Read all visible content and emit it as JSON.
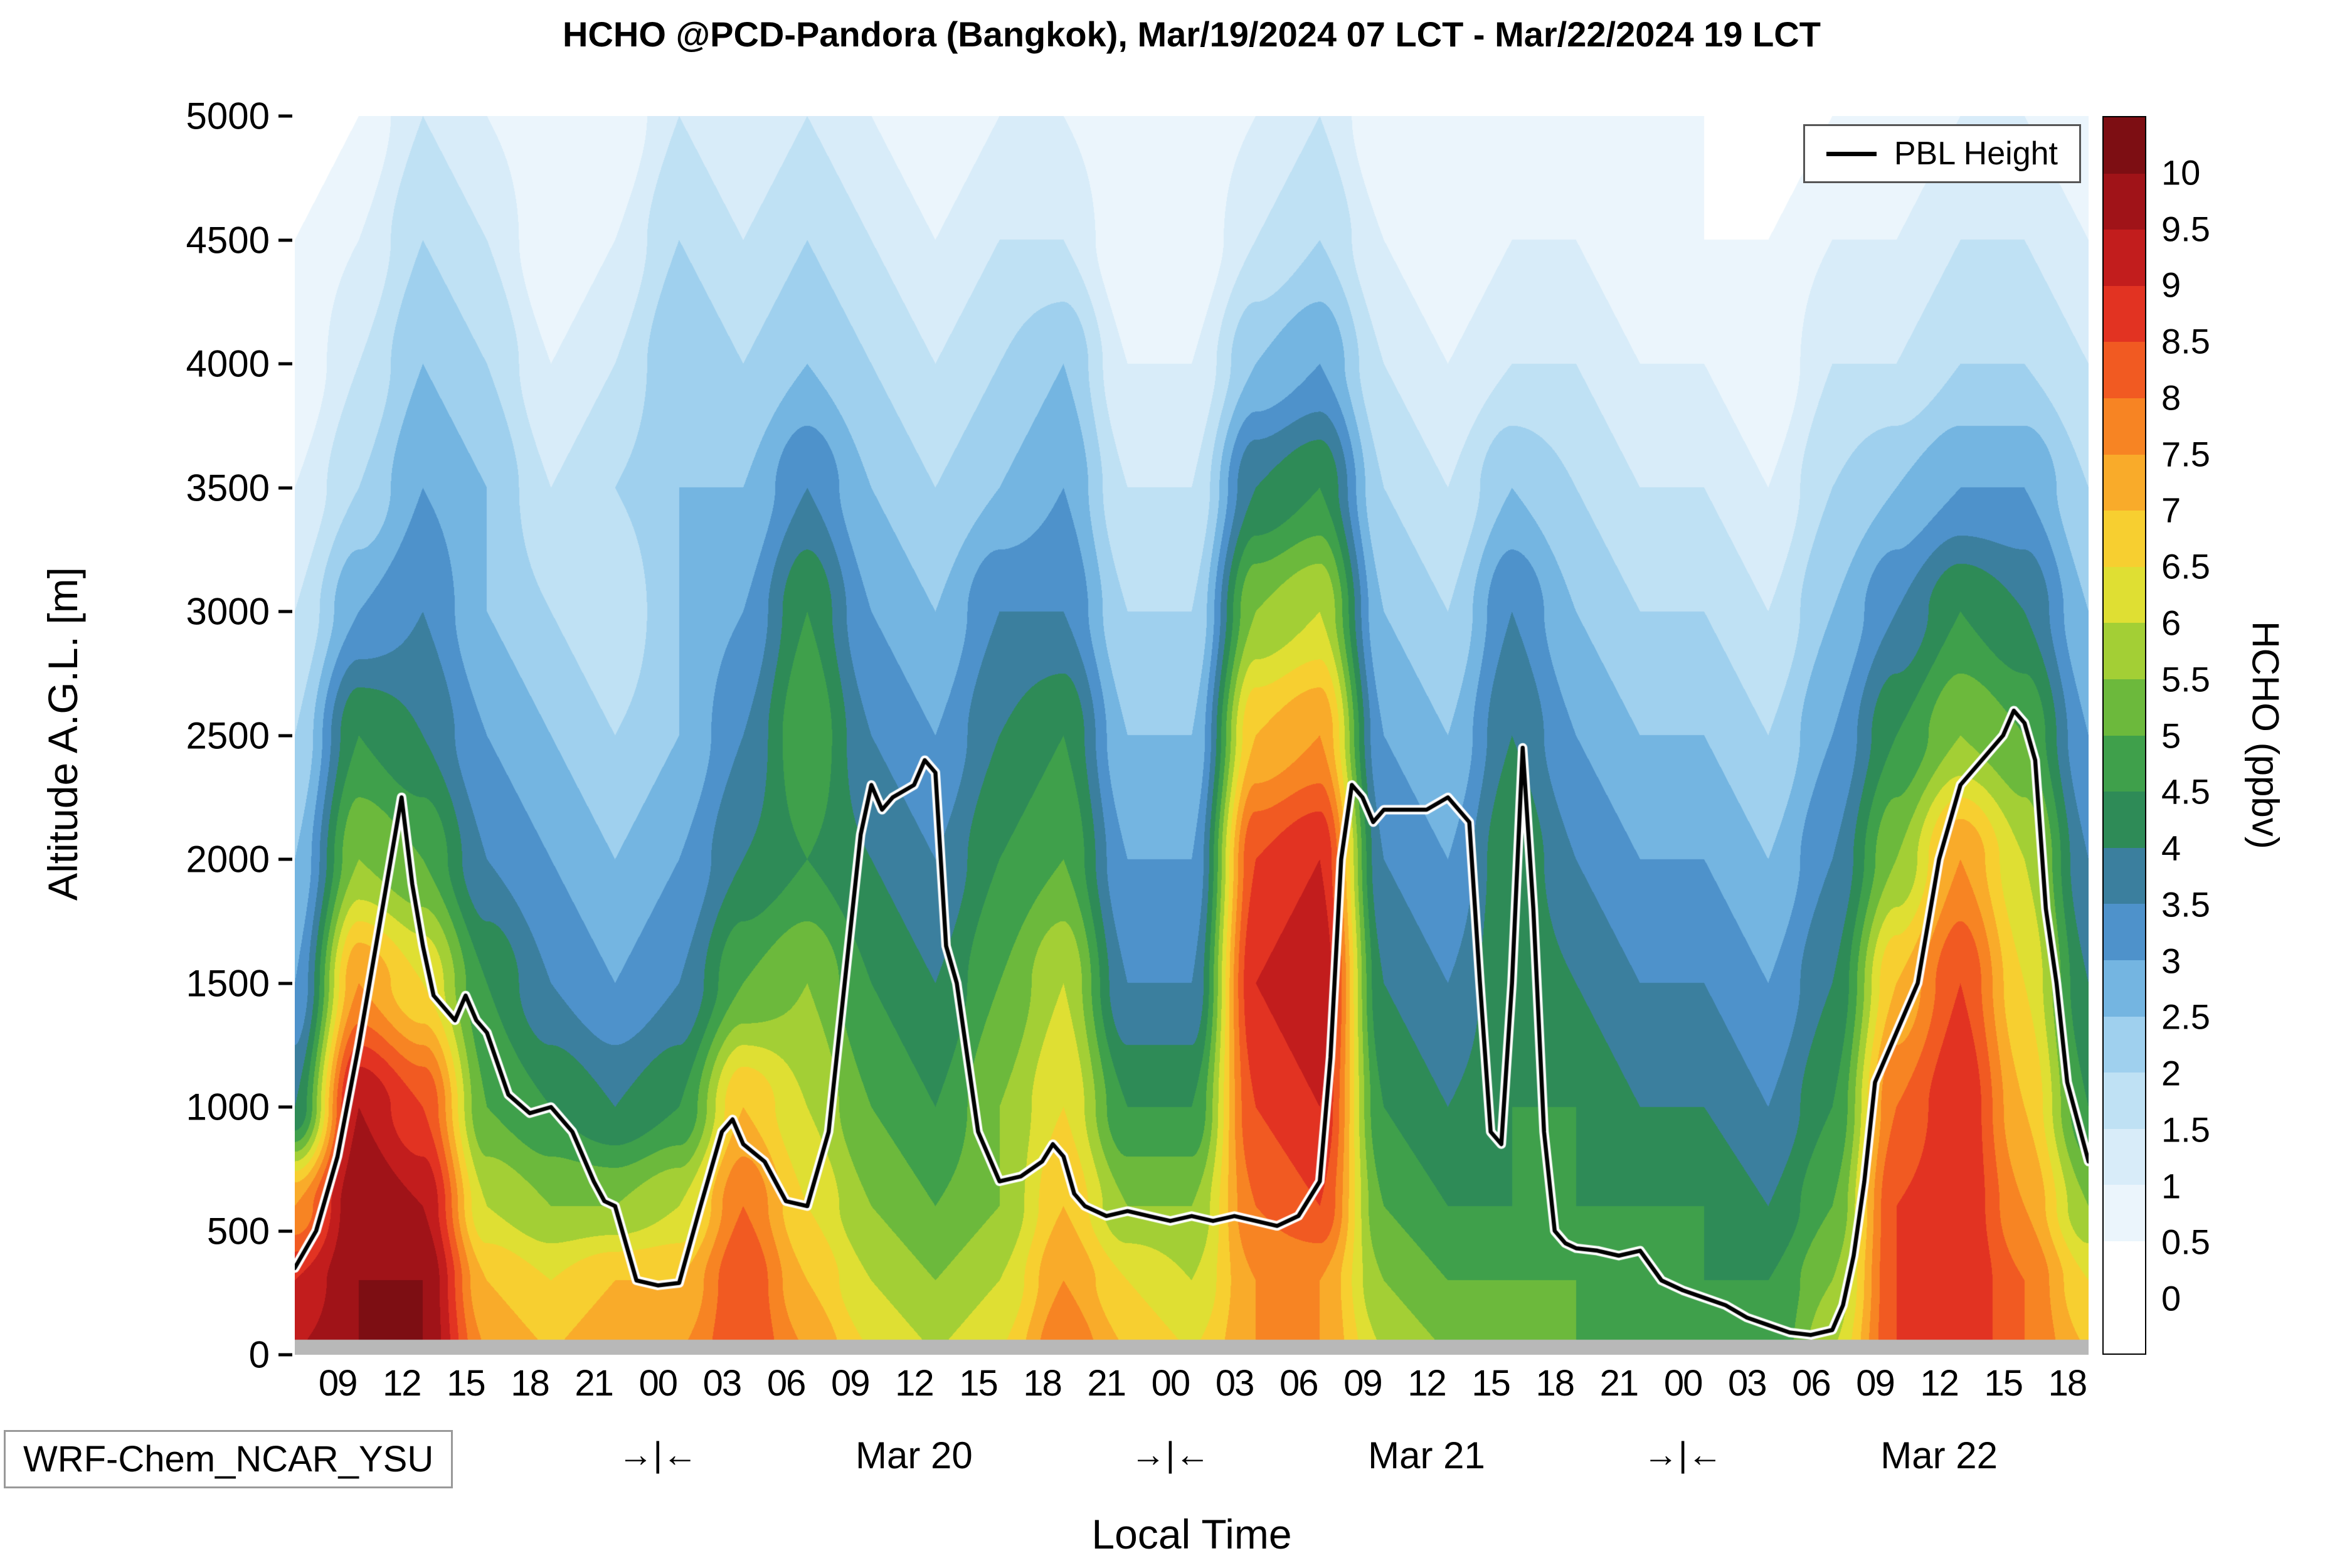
{
  "chart_data": {
    "type": "heatmap",
    "title": "HCHO @PCD-Pandora (Bangkok), Mar/19/2024 07 LCT - Mar/22/2024 19 LCT",
    "xlabel": "Local Time",
    "ylabel": "Altitude A.G.L. [m]",
    "model_label": "WRF-Chem_NCAR_YSU",
    "surface_color": "#b8b8b8",
    "x_range_hours": [
      7,
      91
    ],
    "y_range_m": [
      0,
      5000
    ],
    "y_ticks": [
      {
        "value": 0,
        "label": "0"
      },
      {
        "value": 500,
        "label": "500"
      },
      {
        "value": 1000,
        "label": "1000"
      },
      {
        "value": 1500,
        "label": "1500"
      },
      {
        "value": 2000,
        "label": "2000"
      },
      {
        "value": 2500,
        "label": "2500"
      },
      {
        "value": 3000,
        "label": "3000"
      },
      {
        "value": 3500,
        "label": "3500"
      },
      {
        "value": 4000,
        "label": "4000"
      },
      {
        "value": 4500,
        "label": "4500"
      },
      {
        "value": 5000,
        "label": "5000"
      }
    ],
    "x_ticks": [
      {
        "t": 9,
        "label": "09"
      },
      {
        "t": 12,
        "label": "12"
      },
      {
        "t": 15,
        "label": "15"
      },
      {
        "t": 18,
        "label": "18"
      },
      {
        "t": 21,
        "label": "21"
      },
      {
        "t": 24,
        "label": "00"
      },
      {
        "t": 27,
        "label": "03"
      },
      {
        "t": 30,
        "label": "06"
      },
      {
        "t": 33,
        "label": "09"
      },
      {
        "t": 36,
        "label": "12"
      },
      {
        "t": 39,
        "label": "15"
      },
      {
        "t": 42,
        "label": "18"
      },
      {
        "t": 45,
        "label": "21"
      },
      {
        "t": 48,
        "label": "00"
      },
      {
        "t": 51,
        "label": "03"
      },
      {
        "t": 54,
        "label": "06"
      },
      {
        "t": 57,
        "label": "09"
      },
      {
        "t": 60,
        "label": "12"
      },
      {
        "t": 63,
        "label": "15"
      },
      {
        "t": 66,
        "label": "18"
      },
      {
        "t": 69,
        "label": "21"
      },
      {
        "t": 72,
        "label": "00"
      },
      {
        "t": 75,
        "label": "03"
      },
      {
        "t": 78,
        "label": "06"
      },
      {
        "t": 81,
        "label": "09"
      },
      {
        "t": 84,
        "label": "12"
      },
      {
        "t": 87,
        "label": "15"
      },
      {
        "t": 90,
        "label": "18"
      }
    ],
    "day_labels": [
      {
        "t": 36,
        "label": "Mar 20"
      },
      {
        "t": 60,
        "label": "Mar 21"
      },
      {
        "t": 84,
        "label": "Mar 22"
      }
    ],
    "day_boundaries": [
      {
        "t": 24,
        "label": "→|←"
      },
      {
        "t": 48,
        "label": "→|←"
      },
      {
        "t": 72,
        "label": "→|←"
      }
    ],
    "legend": {
      "pbl_label": "PBL Height",
      "pbl_line_color": "#000000",
      "pbl_halo_color": "#ffffff"
    },
    "colorbar": {
      "label": "HCHO (ppbv)",
      "tick_labels": [
        "10",
        "9.5",
        "9",
        "8.5",
        "8",
        "7.5",
        "7",
        "6.5",
        "6",
        "5.5",
        "5",
        "4.5",
        "4",
        "3.5",
        "3",
        "2.5",
        "2",
        "1.5",
        "1",
        "0.5",
        "0"
      ],
      "levels": [
        0,
        0.5,
        1,
        1.5,
        2,
        2.5,
        3,
        3.5,
        4,
        4.5,
        5,
        5.5,
        6,
        6.5,
        7,
        7.5,
        8,
        8.5,
        9,
        9.5,
        10
      ],
      "colors": [
        "#ffffff",
        "#ebf5fc",
        "#d8ecf9",
        "#bfe1f4",
        "#9fd0ee",
        "#74b5e1",
        "#4e92cb",
        "#3b7f9e",
        "#2e8b57",
        "#3fa04b",
        "#6cb93c",
        "#a3cf35",
        "#dfdf33",
        "#f7cf30",
        "#f9ab2a",
        "#f78423",
        "#f15a22",
        "#e23322",
        "#c21d1d",
        "#a01318"
      ],
      "over_color": "#7d0e13",
      "under_color": "#ffffff"
    },
    "grid": {
      "times": [
        7,
        10,
        13,
        16,
        19,
        22,
        25,
        28,
        31,
        34,
        37,
        40,
        43,
        46,
        49,
        52,
        55,
        58,
        61,
        64,
        67,
        70,
        73,
        76,
        79,
        82,
        85,
        88,
        91
      ],
      "altitudes": [
        0,
        300,
        600,
        1000,
        1500,
        2000,
        2500,
        3000,
        3500,
        4000,
        4500,
        5000
      ],
      "values": [
        [
          9.5,
          10,
          10,
          7.5,
          7,
          7.5,
          7.5,
          8.5,
          7.5,
          6.5,
          6,
          6.5,
          8,
          7,
          6.5,
          7.5,
          7.5,
          6,
          5.5,
          5.5,
          5,
          5,
          5,
          4.5,
          6,
          8.5,
          9,
          8,
          7
        ],
        [
          9,
          10,
          10,
          7,
          6.5,
          7,
          7,
          8.5,
          7,
          6,
          5.5,
          6,
          7.5,
          6.5,
          6,
          7.5,
          7.5,
          5.5,
          5,
          5,
          5,
          4.5,
          4.5,
          4.5,
          5.5,
          8.5,
          9,
          8,
          6.5
        ],
        [
          7.5,
          10,
          9.5,
          6,
          5.5,
          5.5,
          6,
          8,
          6.5,
          5.5,
          5,
          5.5,
          7,
          5.5,
          5.5,
          8,
          8.5,
          5,
          4.5,
          4.5,
          4.5,
          4.5,
          4.5,
          4,
          5,
          8.5,
          9,
          7.5,
          5.5
        ],
        [
          4,
          9.5,
          8.5,
          5,
          4.5,
          4,
          4.5,
          7,
          6,
          5,
          4.5,
          5.5,
          6.5,
          4.5,
          4.5,
          8.5,
          9,
          4.5,
          4,
          4.5,
          4.5,
          4,
          4,
          3.5,
          4.5,
          8,
          9,
          7,
          4.5
        ],
        [
          3,
          7.5,
          6.5,
          4.5,
          3.5,
          3,
          3.5,
          5,
          5.5,
          4.5,
          4,
          5,
          6,
          3.5,
          3.5,
          9,
          9.5,
          4,
          3.5,
          4.5,
          4,
          3.5,
          3.5,
          3,
          4,
          7,
          8.5,
          6.5,
          4
        ],
        [
          2.5,
          5.5,
          5,
          3.5,
          3,
          2.5,
          3,
          4,
          4.5,
          4,
          3.5,
          4.5,
          5,
          3,
          3,
          8.5,
          9,
          3.5,
          3,
          4.5,
          3.5,
          3,
          3,
          2.5,
          3.5,
          5.5,
          7.5,
          6,
          3.5
        ],
        [
          2,
          4.5,
          4,
          3,
          2.5,
          2,
          2.5,
          3.5,
          5,
          3.5,
          3,
          4,
          4.5,
          2.5,
          2.5,
          7,
          7.5,
          3,
          2.5,
          4,
          3,
          2.5,
          2.5,
          2,
          3,
          4.5,
          5.5,
          5,
          3
        ],
        [
          1.5,
          3,
          3.5,
          2.5,
          2,
          1.5,
          2.5,
          3,
          4.5,
          3,
          2.5,
          3.5,
          3.5,
          2,
          2,
          5.5,
          6,
          2.5,
          2,
          3.5,
          2.5,
          2,
          2,
          1.5,
          2.5,
          3.5,
          4.5,
          4,
          2.5
        ],
        [
          1,
          2,
          3,
          2.5,
          1.5,
          2,
          2.5,
          2.5,
          3.5,
          2.5,
          2,
          2.5,
          3,
          1.5,
          1.5,
          4,
          4.5,
          2,
          1.5,
          2.5,
          2,
          1.5,
          1.5,
          1,
          2,
          2.5,
          3,
          3,
          2
        ],
        [
          0.5,
          1.5,
          2.5,
          2,
          1,
          1.5,
          2.5,
          2,
          2.5,
          2,
          1.5,
          2,
          2.5,
          1,
          1,
          2.5,
          3,
          1.5,
          1,
          1.5,
          1.5,
          1,
          1,
          0.5,
          1.5,
          1.5,
          2,
          2,
          1.5
        ],
        [
          0.5,
          1,
          2,
          1.5,
          0.5,
          1,
          2,
          1.5,
          2,
          1.5,
          1,
          1.5,
          1.5,
          0.5,
          0.5,
          1.5,
          2,
          1,
          0.5,
          1,
          1,
          0.5,
          0.5,
          0.5,
          1,
          1,
          1.5,
          1.5,
          1
        ],
        [
          0,
          0.5,
          1.5,
          1,
          0.5,
          0.5,
          1.5,
          1,
          1.5,
          1,
          0.5,
          1,
          1,
          0.5,
          0.5,
          1,
          1.5,
          0.5,
          0.5,
          0.5,
          0.5,
          0.5,
          0.5,
          0,
          0.5,
          0.5,
          1,
          1,
          0.5
        ]
      ]
    },
    "pbl_height": {
      "points": [
        [
          7,
          350
        ],
        [
          8,
          500
        ],
        [
          9,
          800
        ],
        [
          10,
          1250
        ],
        [
          11,
          1750
        ],
        [
          11.5,
          2000
        ],
        [
          12,
          2250
        ],
        [
          12.5,
          1900
        ],
        [
          13,
          1650
        ],
        [
          13.5,
          1450
        ],
        [
          14.5,
          1350
        ],
        [
          15,
          1450
        ],
        [
          15.5,
          1350
        ],
        [
          16,
          1300
        ],
        [
          17,
          1050
        ],
        [
          18,
          975
        ],
        [
          19,
          1000
        ],
        [
          20,
          900
        ],
        [
          21,
          700
        ],
        [
          21.5,
          620
        ],
        [
          22,
          600
        ],
        [
          23,
          300
        ],
        [
          24,
          280
        ],
        [
          25,
          290
        ],
        [
          26,
          600
        ],
        [
          27,
          900
        ],
        [
          27.5,
          950
        ],
        [
          28,
          850
        ],
        [
          29,
          780
        ],
        [
          30,
          620
        ],
        [
          31,
          600
        ],
        [
          32,
          900
        ],
        [
          33,
          1700
        ],
        [
          33.5,
          2100
        ],
        [
          34,
          2300
        ],
        [
          34.5,
          2200
        ],
        [
          35,
          2250
        ],
        [
          36,
          2300
        ],
        [
          36.5,
          2400
        ],
        [
          37,
          2350
        ],
        [
          37.5,
          1650
        ],
        [
          38,
          1500
        ],
        [
          38.5,
          1200
        ],
        [
          39,
          900
        ],
        [
          40,
          700
        ],
        [
          41,
          720
        ],
        [
          42,
          780
        ],
        [
          42.5,
          850
        ],
        [
          43,
          800
        ],
        [
          43.5,
          650
        ],
        [
          44,
          600
        ],
        [
          45,
          560
        ],
        [
          46,
          580
        ],
        [
          47,
          560
        ],
        [
          48,
          540
        ],
        [
          49,
          560
        ],
        [
          50,
          540
        ],
        [
          51,
          560
        ],
        [
          52,
          540
        ],
        [
          53,
          520
        ],
        [
          54,
          560
        ],
        [
          55,
          700
        ],
        [
          55.5,
          1200
        ],
        [
          56,
          2000
        ],
        [
          56.5,
          2300
        ],
        [
          57,
          2250
        ],
        [
          57.5,
          2150
        ],
        [
          58,
          2200
        ],
        [
          59,
          2200
        ],
        [
          60,
          2200
        ],
        [
          61,
          2250
        ],
        [
          61.5,
          2200
        ],
        [
          62,
          2150
        ],
        [
          62.5,
          1500
        ],
        [
          63,
          900
        ],
        [
          63.5,
          850
        ],
        [
          64,
          1500
        ],
        [
          64.5,
          2450
        ],
        [
          65,
          1800
        ],
        [
          65.5,
          900
        ],
        [
          66,
          500
        ],
        [
          66.5,
          450
        ],
        [
          67,
          430
        ],
        [
          68,
          420
        ],
        [
          69,
          400
        ],
        [
          70,
          420
        ],
        [
          71,
          300
        ],
        [
          72,
          260
        ],
        [
          73,
          230
        ],
        [
          74,
          200
        ],
        [
          75,
          150
        ],
        [
          76,
          120
        ],
        [
          77,
          90
        ],
        [
          78,
          80
        ],
        [
          79,
          100
        ],
        [
          79.5,
          200
        ],
        [
          80,
          400
        ],
        [
          80.5,
          700
        ],
        [
          81,
          1100
        ],
        [
          82,
          1300
        ],
        [
          83,
          1500
        ],
        [
          84,
          2000
        ],
        [
          85,
          2300
        ],
        [
          86,
          2400
        ],
        [
          87,
          2500
        ],
        [
          87.5,
          2600
        ],
        [
          88,
          2550
        ],
        [
          88.5,
          2400
        ],
        [
          89,
          1800
        ],
        [
          89.5,
          1500
        ],
        [
          90,
          1100
        ],
        [
          91,
          780
        ]
      ]
    }
  }
}
